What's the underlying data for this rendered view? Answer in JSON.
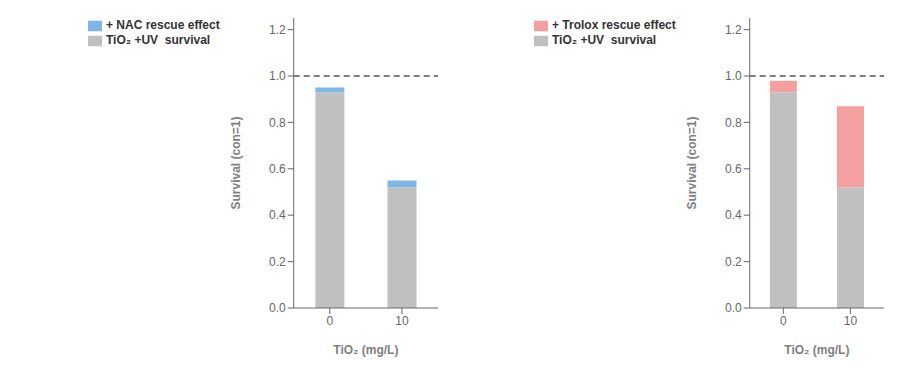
{
  "chart_data": [
    {
      "type": "bar",
      "stacked": true,
      "categories": [
        "0",
        "10"
      ],
      "series": [
        {
          "name": "TiO₂ +UV  survival",
          "color": "#c0c0c0",
          "values": [
            0.93,
            0.52
          ]
        },
        {
          "name": "+ NAC rescue effect",
          "color": "#7eb6e8",
          "values": [
            0.02,
            0.03
          ]
        }
      ],
      "xlabel": "TiO₂ (mg/L)",
      "ylabel": "Survival (con=1)",
      "ylim": [
        0.0,
        1.25
      ],
      "yticks": [
        {
          "value": 0.0,
          "label": "0.0"
        },
        {
          "value": 0.2,
          "label": "0.2"
        },
        {
          "value": 0.4,
          "label": "0.4"
        },
        {
          "value": 0.6,
          "label": "0.6"
        },
        {
          "value": 0.8,
          "label": "0.8"
        },
        {
          "value": 1.0,
          "label": "1.0"
        },
        {
          "value": 1.2,
          "label": "1.2"
        }
      ],
      "hline": 1.0,
      "legend": "upper left",
      "grid": false
    },
    {
      "type": "bar",
      "stacked": true,
      "categories": [
        "0",
        "10"
      ],
      "series": [
        {
          "name": "TiO₂ +UV  survival",
          "color": "#c0c0c0",
          "values": [
            0.93,
            0.52
          ]
        },
        {
          "name": "+ Trolox rescue effect",
          "color": "#f4a0a0",
          "values": [
            0.05,
            0.35
          ]
        }
      ],
      "xlabel": "TiO₂ (mg/L)",
      "ylabel": "Survival (con=1)",
      "ylim": [
        0.0,
        1.25
      ],
      "yticks": [
        {
          "value": 0.0,
          "label": "0.0"
        },
        {
          "value": 0.2,
          "label": "0.2"
        },
        {
          "value": 0.4,
          "label": "0.4"
        },
        {
          "value": 0.6,
          "label": "0.6"
        },
        {
          "value": 0.8,
          "label": "0.8"
        },
        {
          "value": 1.0,
          "label": "1.0"
        },
        {
          "value": 1.2,
          "label": "1.2"
        }
      ],
      "hline": 1.0,
      "legend": "upper left",
      "grid": false
    }
  ]
}
